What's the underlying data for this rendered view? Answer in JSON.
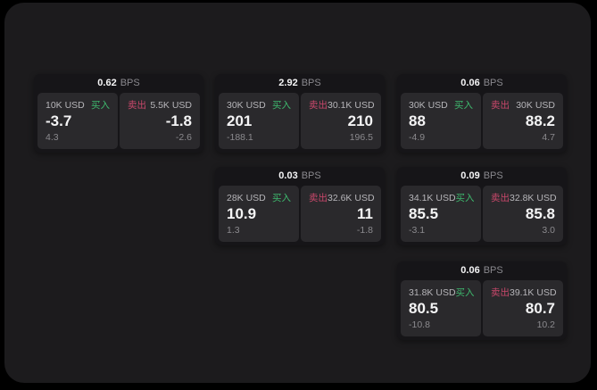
{
  "labels": {
    "bps_unit": "BPS",
    "buy": "买入",
    "sell": "卖出"
  },
  "colors": {
    "panel-bg": "#1c1b1d",
    "card-bg": "#161518",
    "pane-bg": "#2a292c",
    "buy-green": "#3eb96e",
    "sell-red": "#c9486b"
  },
  "cards": [
    {
      "bps": "0.62",
      "buy": {
        "amount": "10K USD",
        "value": "-3.7",
        "sub": "4.3"
      },
      "sell": {
        "amount": "5.5K USD",
        "value": "-1.8",
        "sub": "-2.6"
      }
    },
    {
      "bps": "2.92",
      "buy": {
        "amount": "30K USD",
        "value": "201",
        "sub": "-188.1"
      },
      "sell": {
        "amount": "30.1K USD",
        "value": "210",
        "sub": "196.5"
      }
    },
    {
      "bps": "0.06",
      "buy": {
        "amount": "30K USD",
        "value": "88",
        "sub": "-4.9"
      },
      "sell": {
        "amount": "30K USD",
        "value": "88.2",
        "sub": "4.7"
      }
    },
    {
      "bps": "0.03",
      "buy": {
        "amount": "28K USD",
        "value": "10.9",
        "sub": "1.3"
      },
      "sell": {
        "amount": "32.6K USD",
        "value": "11",
        "sub": "-1.8"
      }
    },
    {
      "bps": "0.09",
      "buy": {
        "amount": "34.1K USD",
        "value": "85.5",
        "sub": "-3.1"
      },
      "sell": {
        "amount": "32.8K USD",
        "value": "85.8",
        "sub": "3.0"
      }
    },
    {
      "bps": "0.06",
      "buy": {
        "amount": "31.8K USD",
        "value": "80.5",
        "sub": "-10.8"
      },
      "sell": {
        "amount": "39.1K USD",
        "value": "80.7",
        "sub": "10.2"
      }
    }
  ]
}
